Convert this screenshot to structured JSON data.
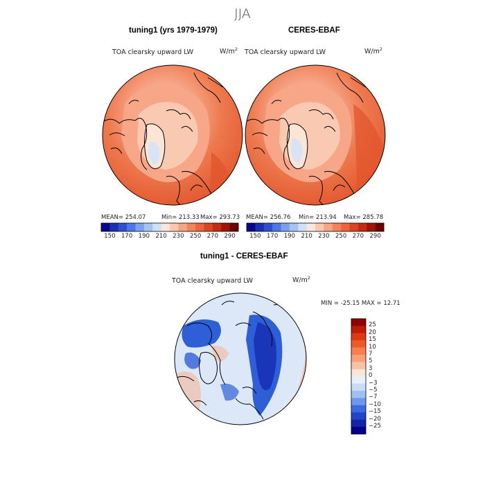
{
  "figure": {
    "season": "JJA"
  },
  "panels": [
    {
      "title": "tuning1 (yrs 1979-1979)",
      "variable": "TOA clearsky upward LW",
      "units": "W/m",
      "units_exp": "2",
      "stats": {
        "mean": "MEAN= 254.07",
        "min": "Min= 213.33",
        "max": "Max= 293.73"
      }
    },
    {
      "title": "CERES-EBAF",
      "variable": "TOA clearsky upward LW",
      "units": "W/m",
      "units_exp": "2",
      "stats": {
        "mean": "MEAN= 256.76",
        "min": "Min= 213.94",
        "max": "Max= 285.78"
      }
    },
    {
      "title": "tuning1 - CERES-EBAF",
      "variable": "TOA clearsky upward LW",
      "units": "W/m",
      "units_exp": "2",
      "stats": {
        "minmax": "MIN = -25.15 MAX =  12.71"
      }
    }
  ],
  "colorbar_abs": {
    "labels": [
      "150",
      "170",
      "190",
      "210",
      "230",
      "250",
      "270",
      "290"
    ],
    "colors": [
      "#08068f",
      "#1b2fb0",
      "#2f4fd0",
      "#4f76e6",
      "#7aa0ee",
      "#a6c2f2",
      "#cfdff5",
      "#f6e8de",
      "#f9c8ad",
      "#f7a583",
      "#f3835c",
      "#ec633c",
      "#db4522",
      "#c12c12",
      "#9e1508",
      "#6e0000"
    ]
  },
  "colorbar_diff": {
    "labels": [
      "25",
      "20",
      "15",
      "10",
      "7",
      "5",
      "3",
      "0",
      "−3",
      "−5",
      "−7",
      "−10",
      "−15",
      "−20",
      "−25"
    ],
    "colors": [
      "#8f0000",
      "#c01c05",
      "#dc3a12",
      "#ee5a2c",
      "#f57f4f",
      "#f7a07a",
      "#f9c2a6",
      "#fbe5d5",
      "#e6f0fb",
      "#c8dcf7",
      "#a1c0f2",
      "#6e98ea",
      "#3d6ade",
      "#2443c8",
      "#1224a8",
      "#00008a"
    ]
  },
  "map_colors": {
    "outer": "#e2552c",
    "mid": "#ee7a50",
    "inner": "#f7a688",
    "core": "#fac9b2",
    "greenland": "#fbe5d5",
    "ice": "#d8e4f5",
    "diff_base": "#dce8f7",
    "diff_blue": "#2f5fd6",
    "diff_dark": "#1a36b8",
    "diff_red": "#f5b59a"
  }
}
